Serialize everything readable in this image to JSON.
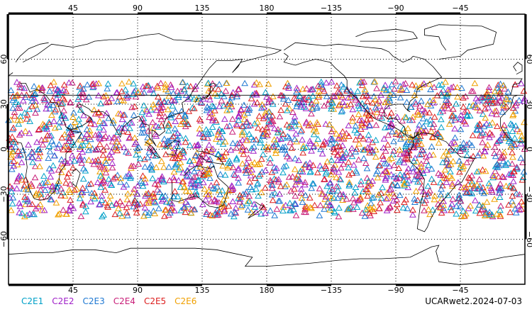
{
  "top_lon_ticks": [
    "45",
    "90",
    "135",
    "180",
    "−135",
    "−90",
    "−45"
  ],
  "bottom_lon_ticks": [
    "45",
    "90",
    "135",
    "180",
    "−135",
    "−90",
    "−45"
  ],
  "lat_ticks": [
    "60",
    "30",
    "0",
    "−30",
    "−60"
  ],
  "legend": [
    {
      "label": "C2E1",
      "color": "#00a0c8"
    },
    {
      "label": "C2E2",
      "color": "#a020c8"
    },
    {
      "label": "C2E3",
      "color": "#1e78d2"
    },
    {
      "label": "C2E4",
      "color": "#c81e78"
    },
    {
      "label": "C2E5",
      "color": "#dc1e1e"
    },
    {
      "label": "C2E6",
      "color": "#f0a000"
    }
  ],
  "caption": "UCARwet2.2024-07-03",
  "map": {
    "lon_range": [
      0,
      360
    ],
    "lat_range": [
      -90,
      90
    ],
    "marker_lat_range": [
      -45,
      45
    ],
    "marker_shape": "triangle",
    "coastline_color": "#000000",
    "frame_color": "#000000"
  }
}
